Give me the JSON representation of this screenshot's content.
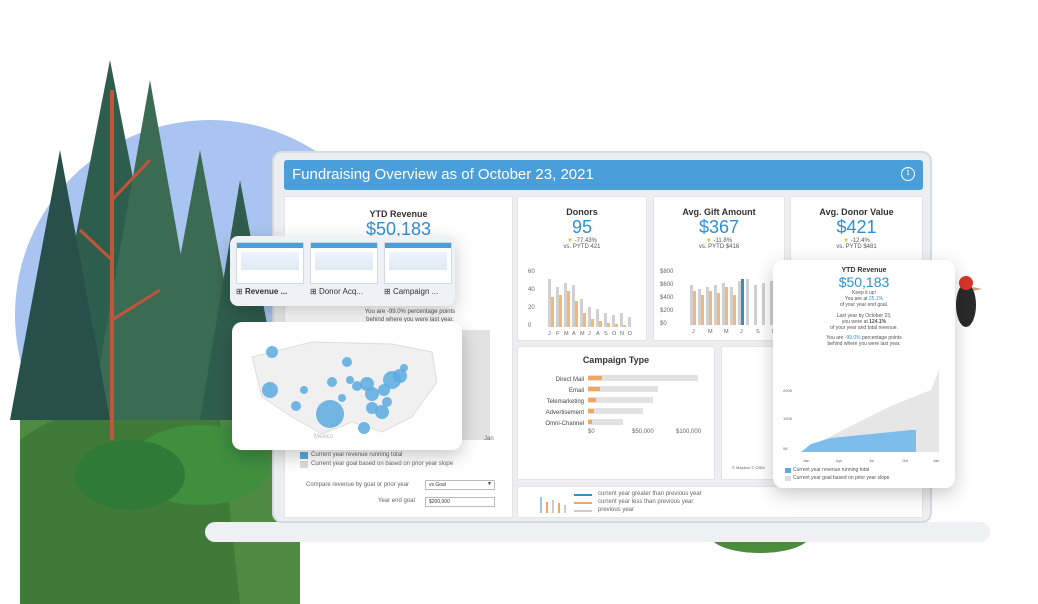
{
  "dashboard": {
    "title": "Fundraising Overview as of October 23, 2021",
    "info_icon": "info-icon",
    "header_color": "#4a9fdb",
    "accent": "#2d8fd5",
    "orange": "#f4a55d"
  },
  "kpis": {
    "ytd": {
      "label": "YTD Revenue",
      "value": "$50,183",
      "note": "You are -99.0% percentage points",
      "note2": "behind where you were last year."
    },
    "donors": {
      "label": "Donors",
      "value": "95",
      "change": "-77.43%",
      "pytd": "vs. PYTD 421"
    },
    "avg_gift": {
      "label": "Avg. Gift Amount",
      "value": "$367",
      "change": "-11.8%",
      "pytd": "vs. PYTD $416"
    },
    "avg_donor": {
      "label": "Avg. Donor Value",
      "value": "$421",
      "change": "-12.4%",
      "pytd": "vs. PYTD $481"
    }
  },
  "donors_chart": {
    "yticks": [
      "60",
      "40",
      "20",
      "0"
    ],
    "months": [
      "J",
      "F",
      "M",
      "A",
      "M",
      "J",
      "A",
      "S",
      "O",
      "N",
      "D"
    ]
  },
  "gift_chart": {
    "yticks": [
      "$800",
      "$600",
      "$400",
      "$200",
      "$0"
    ],
    "months": [
      "J",
      "M",
      "M",
      "J",
      "S",
      "N"
    ]
  },
  "campaign": {
    "title": "Campaign Type",
    "rows": [
      "Direct Mail",
      "Email",
      "Telemarketing",
      "Advertisement",
      "Omni-Channel"
    ],
    "xticks": [
      "$0",
      "$50,000",
      "$100,000"
    ]
  },
  "legend": {
    "item1": "Current year revenue running total",
    "item2": "Current year goal based on based on prior year slope"
  },
  "controls": {
    "compare_label": "Compare revenue  by goal or prior year",
    "compare_value": "vs Goal",
    "goal_label": "Year end goal",
    "goal_value": "$200,000",
    "jan": "Jan"
  },
  "key": {
    "line1": "current year greater than previous year",
    "line2": "current year less than previous year",
    "line3": "previous year"
  },
  "thumbnails": [
    {
      "label": "Revenue ..."
    },
    {
      "label": "Donor Acq..."
    },
    {
      "label": "Campaign ..."
    }
  ],
  "map": {
    "label": "Mexico",
    "attribution": "© Mapbox © OSM"
  },
  "popup": {
    "title": "YTD Revenue",
    "value": "$50,183",
    "l1": "Keep it up!",
    "l2a": "You are at ",
    "l2b": "25.1%",
    "l3": "of your year end goal.",
    "l4": "Last year by October 23,",
    "l5a": "you were at ",
    "l5b": "124.1%",
    "l6": "of your year and total revenue.",
    "l7a": "You are ",
    "l7b": "-99.0%",
    "l7c": " percentage points",
    "l8": "behind where you were last year.",
    "yticks": [
      "200K",
      "100K",
      "0K"
    ],
    "xticks": [
      "Jan",
      "Apr",
      "Jul",
      "Oct",
      "Jan"
    ],
    "legend1": "Current year revenue running total",
    "legend2": "Current year goal based on prior year slope"
  }
}
